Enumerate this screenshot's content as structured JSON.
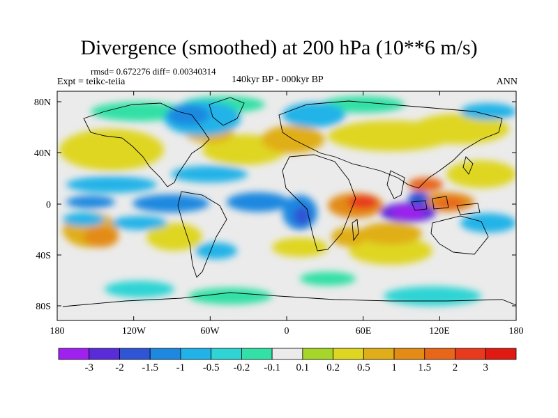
{
  "title": "Divergence (smoothed) at 200 hPa (10**6 m/s)",
  "stats": "rmsd= 0.672276 diff= 0.00340314",
  "experiment": "Expt = teikc-teiia",
  "period": "140kyr BP - 000kyr BP",
  "season": "ANN",
  "axes": {
    "lat_ticks": [
      "80N",
      "40N",
      "0",
      "40S",
      "80S"
    ],
    "lon_ticks": [
      "180",
      "120W",
      "60W",
      "0",
      "60E",
      "120E",
      "180"
    ]
  },
  "colorbar": {
    "labels": [
      "-3",
      "-2",
      "-1.5",
      "-1",
      "-0.5",
      "-0.2",
      "-0.1",
      "0.1",
      "0.2",
      "0.5",
      "1",
      "1.5",
      "2",
      "3"
    ],
    "colors": [
      "#a020f0",
      "#5a2bd9",
      "#2f55d6",
      "#1e88e0",
      "#21b3e8",
      "#2fd4d4",
      "#33e0a6",
      "#ebebeb",
      "#a6d62a",
      "#dfd621",
      "#e0ae18",
      "#e38b14",
      "#e8661a",
      "#e83b1e",
      "#e01a12"
    ]
  },
  "colors": {
    "land_missing": "#ebebeb",
    "coastline": "#000000"
  }
}
